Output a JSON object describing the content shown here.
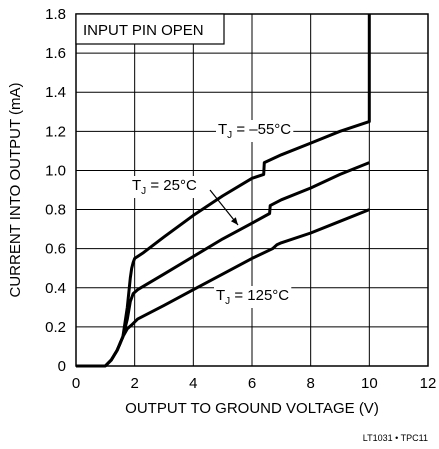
{
  "chart_data": {
    "type": "line",
    "xlabel": "OUTPUT TO GROUND VOLTAGE (V)",
    "ylabel": "CURRENT INTO OUTPUT (mA)",
    "xlim": [
      0,
      12
    ],
    "ylim": [
      0,
      1.8
    ],
    "x_ticks": [
      0,
      2,
      4,
      6,
      8,
      10,
      12
    ],
    "y_ticks": [
      0,
      0.2,
      0.4,
      0.6,
      0.8,
      1.0,
      1.2,
      1.4,
      1.6,
      1.8
    ],
    "x_tick_labels": [
      "0",
      "2",
      "4",
      "6",
      "8",
      "10",
      "12"
    ],
    "y_tick_labels": [
      "0",
      "0.2",
      "0.4",
      "0.6",
      "0.8",
      "1.0",
      "1.2",
      "1.4",
      "1.6",
      "1.8"
    ],
    "grid": true,
    "annotation_box": "INPUT PIN OPEN",
    "series": [
      {
        "name": "T_J = –55°C",
        "x": [
          0,
          1.0,
          1.2,
          1.4,
          1.6,
          1.75,
          1.85,
          1.9,
          1.95,
          2.0,
          2.1,
          2.3,
          3.0,
          4.0,
          5.0,
          6.0,
          6.4,
          6.42,
          7.0,
          8.0,
          9.0,
          10.0,
          10.0,
          10.0
        ],
        "y": [
          0,
          0,
          0.03,
          0.08,
          0.15,
          0.3,
          0.45,
          0.5,
          0.53,
          0.55,
          0.56,
          0.58,
          0.66,
          0.77,
          0.87,
          0.96,
          0.98,
          1.04,
          1.08,
          1.14,
          1.2,
          1.25,
          1.25,
          1.8
        ]
      },
      {
        "name": "T_J = 25°C",
        "x": [
          1.0,
          1.2,
          1.4,
          1.6,
          1.75,
          1.85,
          1.95,
          2.1,
          3.0,
          4.0,
          5.0,
          6.0,
          6.6,
          6.62,
          7.0,
          8.0,
          9.0,
          10.0
        ],
        "y": [
          0,
          0.03,
          0.08,
          0.15,
          0.24,
          0.33,
          0.37,
          0.39,
          0.47,
          0.56,
          0.65,
          0.73,
          0.78,
          0.82,
          0.85,
          0.91,
          0.98,
          1.04
        ]
      },
      {
        "name": "T_J = 125°C",
        "x": [
          1.0,
          1.2,
          1.4,
          1.6,
          1.75,
          1.9,
          2.1,
          3.0,
          4.0,
          5.0,
          6.0,
          6.7,
          6.85,
          7.0,
          8.0,
          9.0,
          10.0
        ],
        "y": [
          0,
          0.03,
          0.08,
          0.15,
          0.19,
          0.21,
          0.24,
          0.31,
          0.39,
          0.47,
          0.55,
          0.6,
          0.62,
          0.63,
          0.68,
          0.74,
          0.8
        ]
      }
    ],
    "labels": [
      {
        "main": "T",
        "sub": "J",
        "rest": " = –55°C"
      },
      {
        "main": "T",
        "sub": "J",
        "rest": " = 25°C"
      },
      {
        "main": "T",
        "sub": "J",
        "rest": " = 125°C"
      }
    ],
    "footer": "LT1031 • TPC11"
  }
}
